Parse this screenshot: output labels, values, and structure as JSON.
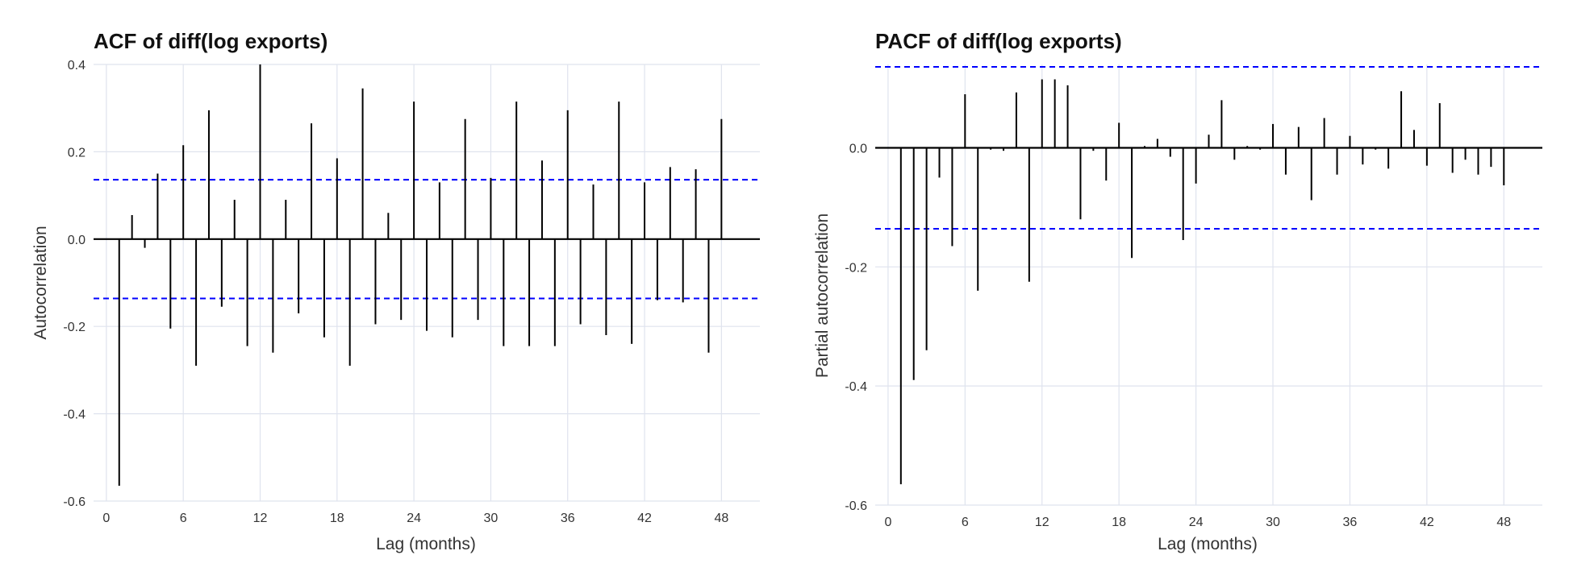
{
  "chart_data": [
    {
      "type": "bar",
      "title": "ACF of diff(log exports)",
      "xlabel": "Lag (months)",
      "ylabel": "Autocorrelation",
      "xlim": [
        -1,
        51
      ],
      "ylim": [
        -0.6,
        0.4
      ],
      "x_ticks": [
        0,
        6,
        12,
        18,
        24,
        30,
        36,
        42,
        48
      ],
      "x_tick_labels": [
        "0",
        "6",
        "12",
        "18",
        "24",
        "30",
        "36",
        "42",
        "48"
      ],
      "y_ticks": [
        -0.6,
        -0.4,
        -0.2,
        0.0,
        0.2,
        0.4
      ],
      "y_tick_labels": [
        "-0.6",
        "-0.4",
        "-0.2",
        "0.0",
        "0.2",
        "0.4"
      ],
      "grid": true,
      "confidence_bounds": [
        -0.136,
        0.136
      ],
      "confidence_color": "#0000ff",
      "bar_color": "#000000",
      "lags": [
        1,
        2,
        3,
        4,
        5,
        6,
        7,
        8,
        9,
        10,
        11,
        12,
        13,
        14,
        15,
        16,
        17,
        18,
        19,
        20,
        21,
        22,
        23,
        24,
        25,
        26,
        27,
        28,
        29,
        30,
        31,
        32,
        33,
        34,
        35,
        36,
        37,
        38,
        39,
        40,
        41,
        42,
        43,
        44,
        45,
        46,
        47,
        48
      ],
      "values": [
        -0.565,
        0.055,
        -0.02,
        0.15,
        -0.205,
        0.215,
        -0.29,
        0.295,
        -0.155,
        0.09,
        -0.245,
        0.4,
        -0.26,
        0.09,
        -0.17,
        0.265,
        -0.225,
        0.185,
        -0.29,
        0.345,
        -0.195,
        0.06,
        -0.185,
        0.315,
        -0.21,
        0.13,
        -0.225,
        0.275,
        -0.185,
        0.14,
        -0.245,
        0.315,
        -0.245,
        0.18,
        -0.245,
        0.295,
        -0.195,
        0.125,
        -0.22,
        0.315,
        -0.24,
        0.13,
        -0.14,
        0.165,
        -0.145,
        0.16,
        -0.26,
        0.275
      ]
    },
    {
      "type": "bar",
      "title": "PACF of diff(log exports)",
      "xlabel": "Lag (months)",
      "ylabel": "Partial autocorrelation",
      "xlim": [
        -1,
        51
      ],
      "ylim": [
        -0.6,
        0.14
      ],
      "x_ticks": [
        0,
        6,
        12,
        18,
        24,
        30,
        36,
        42,
        48
      ],
      "x_tick_labels": [
        "0",
        "6",
        "12",
        "18",
        "24",
        "30",
        "36",
        "42",
        "48"
      ],
      "y_ticks": [
        -0.6,
        -0.4,
        -0.2,
        0.0
      ],
      "y_tick_labels": [
        "-0.6",
        "-0.4",
        "-0.2",
        "0.0"
      ],
      "grid": true,
      "confidence_bounds": [
        -0.136,
        0.136
      ],
      "confidence_color": "#0000ff",
      "bar_color": "#000000",
      "lags": [
        1,
        2,
        3,
        4,
        5,
        6,
        7,
        8,
        9,
        10,
        11,
        12,
        13,
        14,
        15,
        16,
        17,
        18,
        19,
        20,
        21,
        22,
        23,
        24,
        25,
        26,
        27,
        28,
        29,
        30,
        31,
        32,
        33,
        34,
        35,
        36,
        37,
        38,
        39,
        40,
        41,
        42,
        43,
        44,
        45,
        46,
        47,
        48
      ],
      "values": [
        -0.565,
        -0.39,
        -0.34,
        -0.05,
        -0.165,
        0.09,
        -0.24,
        -0.003,
        -0.005,
        0.093,
        -0.225,
        0.115,
        0.115,
        0.105,
        -0.12,
        -0.005,
        -0.055,
        0.042,
        -0.185,
        0.003,
        0.015,
        -0.015,
        -0.155,
        -0.06,
        0.022,
        0.08,
        -0.02,
        0.003,
        -0.003,
        0.04,
        -0.045,
        0.035,
        -0.088,
        0.05,
        -0.045,
        0.02,
        -0.028,
        -0.003,
        -0.035,
        0.095,
        0.03,
        -0.03,
        0.075,
        -0.042,
        -0.02,
        -0.045,
        -0.032,
        -0.063
      ]
    }
  ]
}
